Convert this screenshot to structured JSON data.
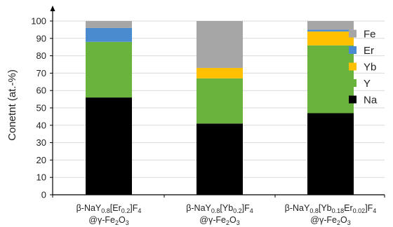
{
  "chart_data": {
    "type": "bar",
    "stacked": true,
    "ylabel": "Conetnt (at.-%)",
    "xlabel": "",
    "ylim": [
      0,
      100
    ],
    "yticks": [
      0,
      10,
      20,
      30,
      40,
      50,
      60,
      70,
      80,
      90,
      100
    ],
    "grid": true,
    "legend_position": "right",
    "categories": [
      {
        "line1": [
          {
            "t": "β-NaY"
          },
          {
            "t": "0.8",
            "s": "sub"
          },
          {
            "t": "[Er"
          },
          {
            "t": "0.2",
            "s": "sub"
          },
          {
            "t": "]F"
          },
          {
            "t": "4",
            "s": "sub"
          }
        ],
        "line2": [
          {
            "t": "@γ-Fe"
          },
          {
            "t": "2",
            "s": "sub"
          },
          {
            "t": "O"
          },
          {
            "t": "3",
            "s": "sub"
          }
        ]
      },
      {
        "line1": [
          {
            "t": "β-NaY"
          },
          {
            "t": "0.8",
            "s": "sub"
          },
          {
            "t": "[Yb"
          },
          {
            "t": "0.2",
            "s": "sub"
          },
          {
            "t": "]F"
          },
          {
            "t": "4",
            "s": "sub"
          }
        ],
        "line2": [
          {
            "t": "@γ-Fe"
          },
          {
            "t": "2",
            "s": "sub"
          },
          {
            "t": "O"
          },
          {
            "t": "3",
            "s": "sub"
          }
        ]
      },
      {
        "line1": [
          {
            "t": "β-NaY"
          },
          {
            "t": "0.8",
            "s": "sub"
          },
          {
            "t": "[Yb"
          },
          {
            "t": "0.18",
            "s": "sub"
          },
          {
            "t": "Er"
          },
          {
            "t": "0.02",
            "s": "sub"
          },
          {
            "t": "]F"
          },
          {
            "t": "4",
            "s": "sub"
          }
        ],
        "line2": [
          {
            "t": "@γ-Fe"
          },
          {
            "t": "2",
            "s": "sub"
          },
          {
            "t": "O"
          },
          {
            "t": "3",
            "s": "sub"
          }
        ]
      }
    ],
    "series": [
      {
        "name": "Na",
        "color": "#000000",
        "values": [
          56,
          41,
          47
        ]
      },
      {
        "name": "Y",
        "color": "#6ab43e",
        "values": [
          32,
          26,
          39
        ]
      },
      {
        "name": "Yb",
        "color": "#ffc000",
        "values": [
          0,
          6,
          8
        ]
      },
      {
        "name": "Er",
        "color": "#4a8bd0",
        "values": [
          8,
          0,
          1
        ]
      },
      {
        "name": "Fe",
        "color": "#a6a6a6",
        "values": [
          4,
          27,
          5
        ]
      }
    ],
    "legend_order": [
      "Fe",
      "Er",
      "Yb",
      "Y",
      "Na"
    ],
    "gridline_color": "#d9d9d9"
  }
}
